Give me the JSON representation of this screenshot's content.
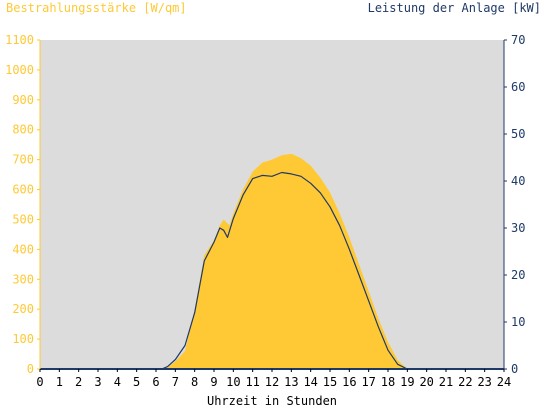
{
  "chart_data": {
    "type": "area",
    "left_axis_title": "Bestrahlungsstärke [W/qm]",
    "right_axis_title": "Leistung der Anlage [kW]",
    "xlabel": "Uhrzeit in Stunden",
    "x_range": [
      0,
      24
    ],
    "left_ylim": [
      0,
      1100
    ],
    "right_ylim": [
      0,
      70
    ],
    "x_ticks": [
      "0",
      "1",
      "2",
      "3",
      "4",
      "5",
      "6",
      "7",
      "8",
      "9",
      "10",
      "11",
      "12",
      "13",
      "14",
      "15",
      "16",
      "17",
      "18",
      "19",
      "20",
      "21",
      "22",
      "23",
      "24"
    ],
    "left_ticks": [
      "0",
      "100",
      "200",
      "300",
      "400",
      "500",
      "600",
      "700",
      "800",
      "900",
      "1000",
      "1100"
    ],
    "right_ticks": [
      "0",
      "10",
      "20",
      "30",
      "40",
      "50",
      "60",
      "70"
    ],
    "grid": false,
    "colors": {
      "plot_background": "#DCDCDC",
      "irradiance_fill": "#FFC935",
      "power_line": "#1F3A68",
      "left_axis": "#FFC935",
      "right_axis": "#1F3A68"
    },
    "series": [
      {
        "axis": "left",
        "style": "area",
        "x": [
          0,
          6.3,
          6.6,
          7.0,
          7.5,
          8.0,
          8.5,
          9.0,
          9.3,
          9.5,
          9.8,
          10.0,
          10.5,
          11.0,
          11.5,
          12.0,
          12.5,
          13.0,
          13.5,
          14.0,
          14.5,
          15.0,
          15.5,
          16.0,
          16.5,
          17.0,
          17.5,
          18.0,
          18.5,
          19.0,
          24
        ],
        "values": [
          0,
          0,
          5,
          25,
          60,
          200,
          380,
          430,
          480,
          500,
          480,
          520,
          600,
          660,
          690,
          700,
          715,
          720,
          705,
          680,
          640,
          590,
          520,
          440,
          350,
          260,
          170,
          90,
          30,
          0,
          0
        ]
      },
      {
        "axis": "right",
        "style": "line",
        "x": [
          0,
          6.3,
          6.6,
          7.0,
          7.5,
          8.0,
          8.5,
          9.0,
          9.3,
          9.5,
          9.7,
          10.0,
          10.5,
          11.0,
          11.5,
          12.0,
          12.5,
          13.0,
          13.5,
          14.0,
          14.5,
          15.0,
          15.5,
          16.0,
          16.5,
          17.0,
          17.5,
          18.0,
          18.5,
          19.0,
          24
        ],
        "values": [
          0,
          0,
          0.5,
          2,
          5,
          12,
          23,
          27,
          30,
          29.5,
          28,
          32,
          37,
          40.5,
          41.2,
          41,
          41.8,
          41.5,
          41,
          39.5,
          37.5,
          34.5,
          30.5,
          25.5,
          20,
          14.5,
          9,
          4,
          1,
          0,
          0
        ]
      }
    ]
  }
}
